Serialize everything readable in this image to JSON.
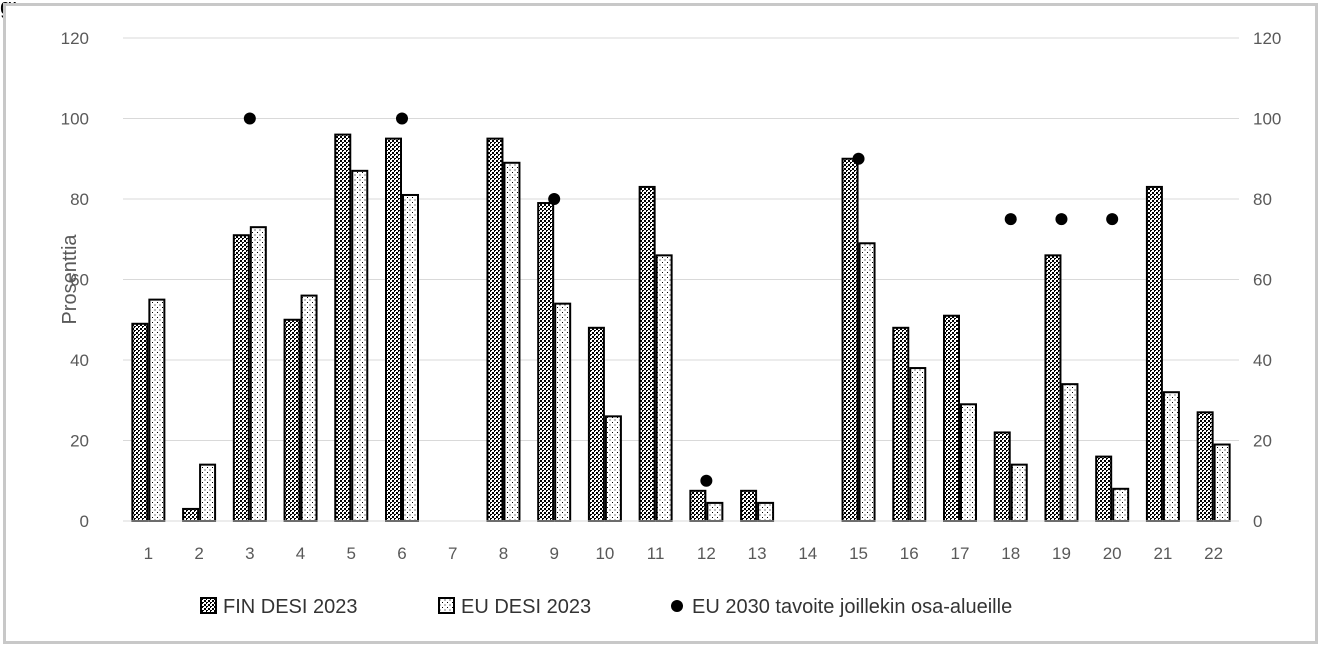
{
  "page": {
    "title_fragment": "gi"
  },
  "chart_data": {
    "type": "bar",
    "ylabel": "Prosenttia",
    "ylim": [
      0,
      120
    ],
    "yticks": [
      0,
      20,
      40,
      60,
      80,
      100,
      120
    ],
    "secondary_y_axis": true,
    "grid": true,
    "legend_position": "bottom",
    "categories": [
      "1",
      "2",
      "3",
      "4",
      "5",
      "6",
      "7",
      "8",
      "9",
      "10",
      "11",
      "12",
      "13",
      "14",
      "15",
      "16",
      "17",
      "18",
      "19",
      "20",
      "21",
      "22"
    ],
    "series": [
      {
        "name": "FIN DESI 2023",
        "kind": "bar",
        "pattern": "crosshatch",
        "values": [
          49,
          3,
          71,
          50,
          96,
          95,
          null,
          95,
          79,
          48,
          83,
          7.5,
          7.5,
          null,
          90,
          48,
          51,
          22,
          66,
          16,
          83,
          27
        ]
      },
      {
        "name": "EU DESI 2023",
        "kind": "bar",
        "pattern": "dotted",
        "values": [
          55,
          14,
          73,
          56,
          87,
          81,
          null,
          89,
          54,
          26,
          66,
          4.5,
          4.5,
          null,
          69,
          38,
          29,
          14,
          34,
          8,
          32,
          19
        ]
      },
      {
        "name": "EU 2030 tavoite joillekin osa-alueille",
        "kind": "marker",
        "values": [
          null,
          null,
          100,
          null,
          null,
          100,
          null,
          null,
          80,
          null,
          null,
          10,
          null,
          null,
          90,
          null,
          null,
          75,
          75,
          75,
          null,
          null
        ]
      }
    ]
  },
  "colors": {
    "bar_stroke": "#000000",
    "marker": "#000000",
    "axis_text": "#595959",
    "gridline": "#d9d9d9",
    "frame": "#c8c8c8"
  }
}
